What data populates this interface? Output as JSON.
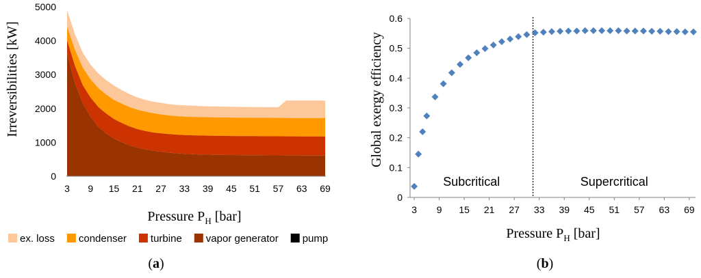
{
  "panels": {
    "a": {
      "caption_open": "(",
      "caption_letter": "a",
      "caption_close": ")"
    },
    "b": {
      "caption_open": "(",
      "caption_letter": "b",
      "caption_close": ")"
    }
  },
  "chart_data": [
    {
      "type": "area",
      "stacked": true,
      "title": "",
      "xlabel_main": "Pressure P",
      "xlabel_sub": "H",
      "xlabel_tail": " [bar]",
      "ylabel": "Irreversibilities [kW]",
      "x": [
        3,
        5,
        7,
        9,
        11,
        13,
        15,
        17,
        19,
        21,
        23,
        25,
        27,
        29,
        31,
        33,
        35,
        37,
        39,
        41,
        43,
        45,
        47,
        49,
        51,
        53,
        55,
        57,
        59,
        61,
        63,
        65,
        67,
        69
      ],
      "x_ticks": [
        3,
        9,
        15,
        21,
        27,
        33,
        39,
        45,
        51,
        57,
        63,
        69
      ],
      "ylim": [
        0,
        5000
      ],
      "y_ticks": [
        0,
        1000,
        2000,
        3000,
        4000,
        5000
      ],
      "grid": false,
      "legend_position": "bottom",
      "series": [
        {
          "name": "pump",
          "color": "#000000",
          "values": [
            10,
            10,
            10,
            10,
            10,
            10,
            10,
            10,
            10,
            10,
            10,
            10,
            10,
            10,
            10,
            10,
            10,
            10,
            10,
            10,
            10,
            10,
            10,
            10,
            10,
            10,
            10,
            10,
            10,
            10,
            10,
            10,
            10,
            10
          ]
        },
        {
          "name": "vapor generator",
          "color": "#993300",
          "values": [
            3600,
            2750,
            2150,
            1750,
            1450,
            1250,
            1100,
            990,
            900,
            830,
            780,
            740,
            710,
            685,
            665,
            650,
            640,
            632,
            626,
            622,
            618,
            615,
            612,
            610,
            608,
            606,
            605,
            604,
            603,
            602,
            601,
            600,
            600,
            600
          ]
        },
        {
          "name": "turbine",
          "color": "#cc3300",
          "values": [
            400,
            500,
            530,
            560,
            580,
            590,
            580,
            570,
            560,
            550,
            545,
            540,
            545,
            550,
            553,
            556,
            558,
            560,
            561,
            562,
            563,
            563,
            564,
            564,
            565,
            565,
            565,
            565,
            565,
            565,
            565,
            565,
            565,
            565
          ]
        },
        {
          "name": "condenser",
          "color": "#ff9900",
          "values": [
            400,
            480,
            520,
            540,
            560,
            560,
            565,
            570,
            572,
            573,
            572,
            570,
            560,
            550,
            547,
            545,
            545,
            544,
            544,
            544,
            544,
            543,
            543,
            543,
            543,
            543,
            543,
            543,
            543,
            543,
            543,
            543,
            543,
            543
          ]
        },
        {
          "name": "ex. loss",
          "color": "#fcc89b",
          "values": [
            490,
            460,
            440,
            430,
            430,
            425,
            420,
            400,
            380,
            360,
            350,
            340,
            340,
            335,
            330,
            329,
            327,
            325,
            324,
            322,
            320,
            319,
            318,
            317,
            316,
            316,
            315,
            315,
            515,
            515,
            516,
            517,
            517,
            512
          ]
        }
      ]
    },
    {
      "type": "scatter",
      "title": "",
      "xlabel_main": "Pressure P",
      "xlabel_sub": "H",
      "xlabel_tail": " [bar]",
      "ylabel": "Global exergy efficiency",
      "x_ticks": [
        3,
        9,
        15,
        21,
        27,
        33,
        39,
        45,
        51,
        57,
        63,
        69
      ],
      "xlim": [
        2,
        70.5
      ],
      "ylim": [
        0,
        0.6
      ],
      "y_ticks": [
        "0",
        "0.1",
        "0.2",
        "0.3",
        "0.4",
        "0.5",
        "0.6"
      ],
      "grid": false,
      "marker": "diamond",
      "marker_color": "#4f81bd",
      "critical_pressure": 31.5,
      "regions": [
        "Subcritical",
        "Supercritical"
      ],
      "points": [
        {
          "x": 3,
          "y": 0.037
        },
        {
          "x": 4,
          "y": 0.145
        },
        {
          "x": 5,
          "y": 0.22
        },
        {
          "x": 6,
          "y": 0.273
        },
        {
          "x": 8,
          "y": 0.337
        },
        {
          "x": 10,
          "y": 0.381
        },
        {
          "x": 12,
          "y": 0.418
        },
        {
          "x": 14,
          "y": 0.446
        },
        {
          "x": 16,
          "y": 0.468
        },
        {
          "x": 18,
          "y": 0.485
        },
        {
          "x": 20,
          "y": 0.499
        },
        {
          "x": 22,
          "y": 0.511
        },
        {
          "x": 24,
          "y": 0.522
        },
        {
          "x": 26,
          "y": 0.531
        },
        {
          "x": 28,
          "y": 0.539
        },
        {
          "x": 30,
          "y": 0.546
        },
        {
          "x": 32,
          "y": 0.552
        },
        {
          "x": 34,
          "y": 0.554
        },
        {
          "x": 36,
          "y": 0.556
        },
        {
          "x": 38,
          "y": 0.557
        },
        {
          "x": 40,
          "y": 0.558
        },
        {
          "x": 42,
          "y": 0.558
        },
        {
          "x": 44,
          "y": 0.559
        },
        {
          "x": 46,
          "y": 0.559
        },
        {
          "x": 48,
          "y": 0.559
        },
        {
          "x": 50,
          "y": 0.559
        },
        {
          "x": 52,
          "y": 0.559
        },
        {
          "x": 54,
          "y": 0.558
        },
        {
          "x": 56,
          "y": 0.558
        },
        {
          "x": 58,
          "y": 0.558
        },
        {
          "x": 60,
          "y": 0.557
        },
        {
          "x": 62,
          "y": 0.557
        },
        {
          "x": 64,
          "y": 0.556
        },
        {
          "x": 66,
          "y": 0.556
        },
        {
          "x": 68,
          "y": 0.555
        },
        {
          "x": 70,
          "y": 0.555
        }
      ]
    }
  ]
}
